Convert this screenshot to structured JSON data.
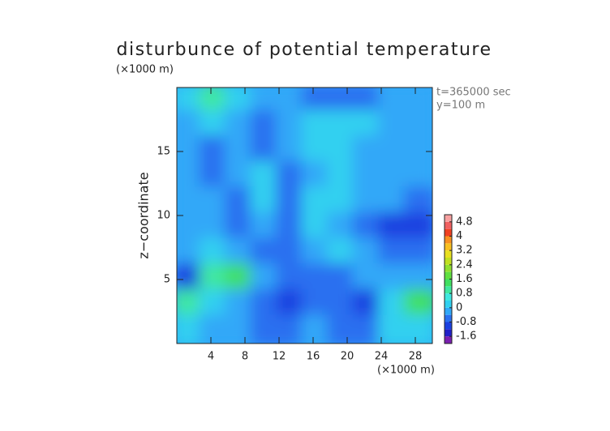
{
  "chart_data": {
    "type": "contour",
    "title": "disturbunce of potential temperature",
    "y_unit_label": "(×1000 m)",
    "x_unit_label": "(×1000 m)",
    "ylabel": "z−coordinate",
    "annotations": [
      "t=365000 sec",
      "y=100 m"
    ],
    "xlim": [
      0,
      30
    ],
    "ylim": [
      0,
      20
    ],
    "xticks": [
      4,
      8,
      12,
      16,
      20,
      24,
      28
    ],
    "yticks": [
      5,
      10,
      15
    ],
    "x": [
      1.5,
      4.5,
      7.5,
      10.5,
      13.5,
      16.5,
      19.5,
      22.5,
      25.5,
      28.5
    ],
    "y": [
      19,
      17,
      15,
      13,
      11,
      9,
      7,
      5,
      3,
      1
    ],
    "values": [
      [
        0.2,
        1.0,
        0.2,
        -0.2,
        -0.4,
        -0.6,
        -0.8,
        -0.6,
        -0.4,
        -0.2
      ],
      [
        -0.2,
        0.2,
        -0.2,
        -0.6,
        -0.2,
        0.2,
        0.3,
        0.2,
        -0.4,
        -0.2
      ],
      [
        -0.4,
        -0.6,
        -0.2,
        -0.6,
        -0.4,
        0.2,
        0.2,
        -0.2,
        -0.4,
        -0.2
      ],
      [
        -0.2,
        -0.6,
        -0.4,
        0.1,
        -0.6,
        -0.2,
        0.1,
        -0.4,
        -0.2,
        -0.4
      ],
      [
        -0.2,
        -0.4,
        -0.8,
        0.1,
        -0.6,
        0.1,
        0.1,
        -0.4,
        -0.2,
        -0.8
      ],
      [
        -0.2,
        -0.2,
        -0.8,
        -0.2,
        -0.6,
        0.1,
        -0.2,
        -0.6,
        -1.0,
        -1.0
      ],
      [
        -0.4,
        0.1,
        -0.2,
        -0.6,
        -0.8,
        -0.4,
        0.1,
        -0.2,
        -0.6,
        -0.8
      ],
      [
        -1.0,
        0.8,
        1.2,
        -0.2,
        -0.6,
        -0.8,
        -0.6,
        -0.4,
        -0.2,
        -0.4
      ],
      [
        0.8,
        0.2,
        -0.2,
        -0.8,
        -1.2,
        -0.6,
        -0.8,
        -1.2,
        0.2,
        1.2
      ],
      [
        0.1,
        -0.2,
        -0.4,
        -0.8,
        -0.6,
        -0.4,
        -0.6,
        -0.8,
        0.1,
        0.2
      ]
    ],
    "colorbar": {
      "levels": [
        -2,
        -1.6,
        -1.2,
        -0.8,
        -0.4,
        0,
        0.4,
        0.8,
        1.2,
        1.6,
        2.0,
        2.4,
        2.8,
        3.2,
        3.6,
        4.0,
        4.4,
        4.8,
        5.2
      ],
      "colors": [
        "#7a1fb0",
        "#2020c8",
        "#1a40e0",
        "#2a70f0",
        "#30a8f8",
        "#30d0f0",
        "#40e8e0",
        "#40e8a0",
        "#40e060",
        "#60e040",
        "#90e030",
        "#c0e020",
        "#e8e020",
        "#f8c020",
        "#f89020",
        "#f04020",
        "#f06060",
        "#f8a0a0"
      ],
      "ticks": [
        -1.6,
        -0.8,
        0,
        0.8,
        1.6,
        2.4,
        3.2,
        4,
        4.8
      ]
    }
  }
}
